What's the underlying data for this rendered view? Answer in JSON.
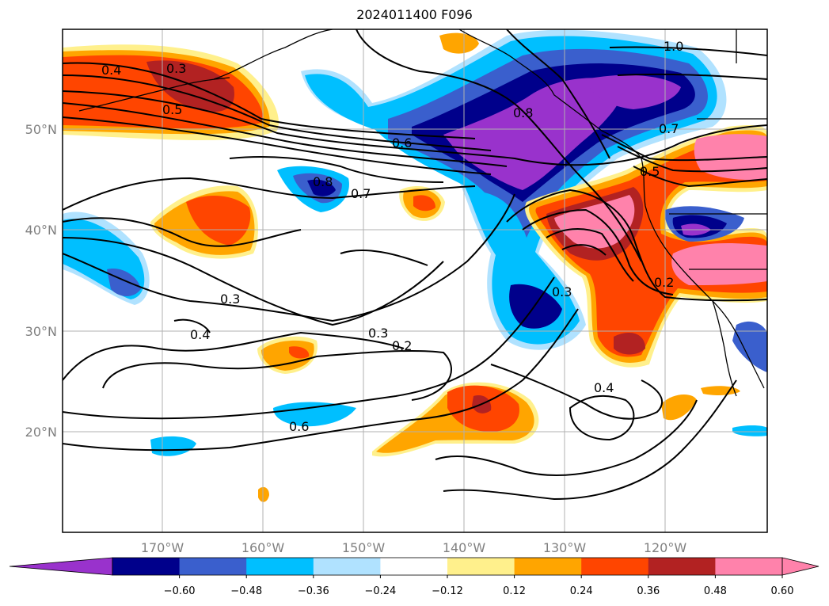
{
  "title": "2024011400 F096",
  "map": {
    "lat_labels": [
      "50°N",
      "40°N",
      "30°N",
      "20°N"
    ],
    "lon_labels": [
      "170°W",
      "160°W",
      "150°W",
      "140°W",
      "130°W",
      "120°W"
    ],
    "contour_labels": [
      "0.4",
      "0.3",
      "0.5",
      "0.6",
      "0.8",
      "0.7",
      "0.8",
      "1.0",
      "0.7",
      "0.5",
      "0.3",
      "0.4",
      "0.3",
      "0.2",
      "0.6",
      "0.2",
      "0.3",
      "0.4"
    ]
  },
  "colorbar": {
    "tick_labels": [
      "−0.60",
      "−0.48",
      "−0.36",
      "−0.24",
      "−0.12",
      "0.12",
      "0.24",
      "0.36",
      "0.48",
      "0.60"
    ],
    "colors": [
      "#9932cc",
      "#00008b",
      "#3a5fcd",
      "#00bfff",
      "#b0e2ff",
      "#ffffff",
      "#fff08c",
      "#ffa500",
      "#ff4500",
      "#b22222",
      "#ff82ab",
      "#ff82ab"
    ]
  }
}
